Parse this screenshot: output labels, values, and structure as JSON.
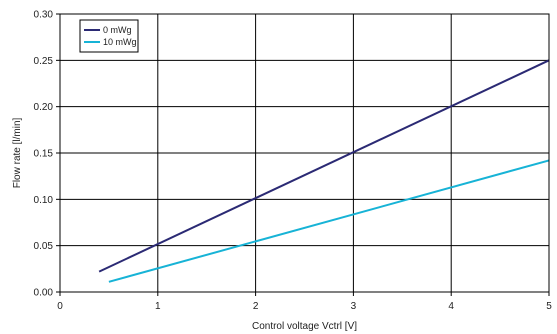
{
  "chart_data": {
    "type": "line",
    "xlabel": "Control voltage Vctrl [V]",
    "ylabel": "Flow rate [l/min]",
    "xlim": [
      0,
      5
    ],
    "ylim": [
      0,
      0.3
    ],
    "x_ticks": [
      0,
      1,
      2,
      3,
      4,
      5
    ],
    "x_tick_labels": [
      "0",
      "1",
      "2",
      "3",
      "4",
      "5"
    ],
    "y_ticks": [
      0,
      0.05,
      0.1,
      0.15,
      0.2,
      0.25,
      0.3
    ],
    "y_tick_labels": [
      "0.00",
      "0.05",
      "0.10",
      "0.15",
      "0.20",
      "0.25",
      "0.30"
    ],
    "grid": true,
    "legend_position": "top-left",
    "series": [
      {
        "name": "0 mWg",
        "color": "#2b2a74",
        "x": [
          0.4,
          5.0
        ],
        "y": [
          0.022,
          0.25
        ]
      },
      {
        "name": "10 mWg",
        "color": "#17b3d6",
        "x": [
          0.5,
          5.0
        ],
        "y": [
          0.011,
          0.142
        ]
      }
    ]
  }
}
